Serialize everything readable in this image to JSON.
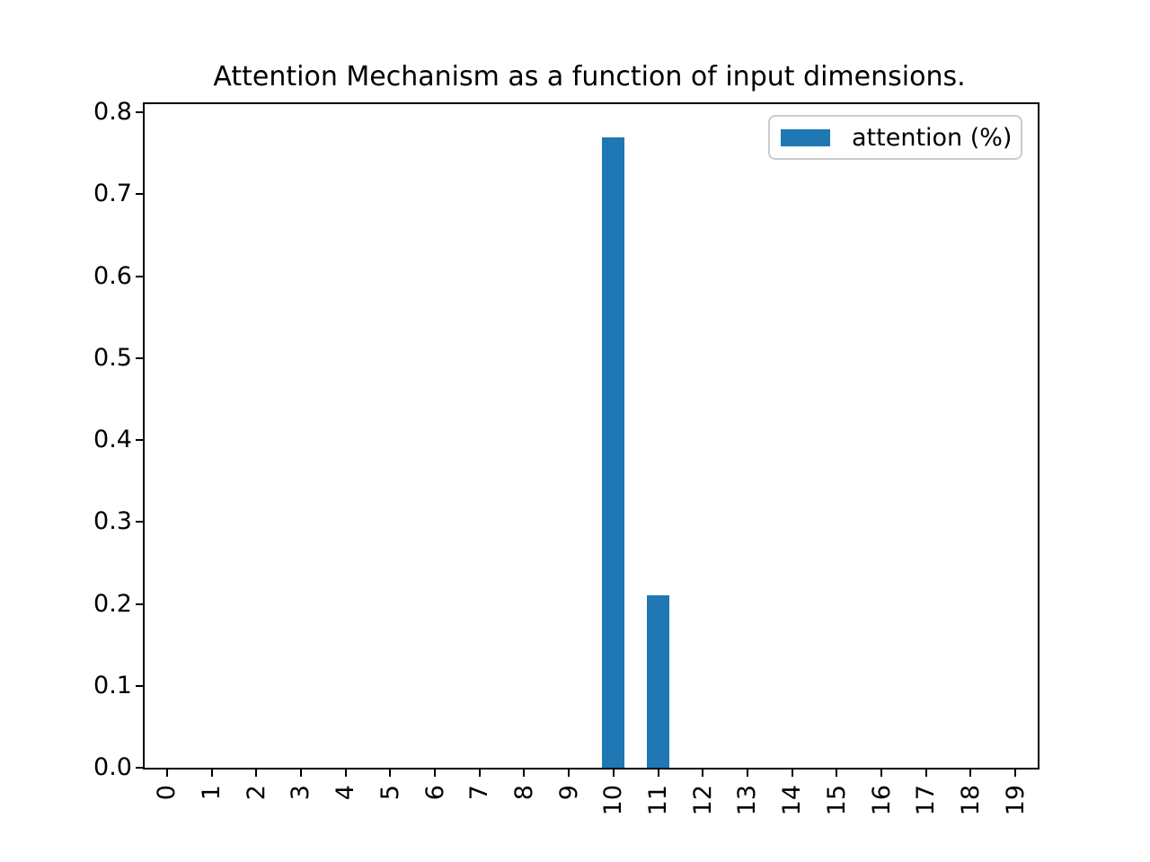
{
  "chart_data": {
    "type": "bar",
    "title": "Attention Mechanism as a function of input dimensions.",
    "categories": [
      "0",
      "1",
      "2",
      "3",
      "4",
      "5",
      "6",
      "7",
      "8",
      "9",
      "10",
      "11",
      "12",
      "13",
      "14",
      "15",
      "16",
      "17",
      "18",
      "19"
    ],
    "series": [
      {
        "name": "attention (%)",
        "color": "#1f77b4",
        "values": [
          0,
          0,
          0,
          0,
          0,
          0,
          0,
          0,
          0,
          0,
          0.77,
          0.21,
          0,
          0,
          0,
          0,
          0,
          0,
          0,
          0
        ]
      }
    ],
    "xlabel": "",
    "ylabel": "",
    "ytick_labels": [
      "0.0",
      "0.1",
      "0.2",
      "0.3",
      "0.4",
      "0.5",
      "0.6",
      "0.7",
      "0.8"
    ],
    "yticks": [
      0.0,
      0.1,
      0.2,
      0.3,
      0.4,
      0.5,
      0.6,
      0.7,
      0.8
    ],
    "ylim": [
      0,
      0.81
    ],
    "grid": false,
    "bar_relative_width": 0.5,
    "axis_color": "#000000",
    "plot_background": "#ffffff",
    "legend": {
      "position": "upper right",
      "entries": [
        {
          "label": "attention (%)",
          "color": "#1f77b4"
        }
      ]
    }
  }
}
